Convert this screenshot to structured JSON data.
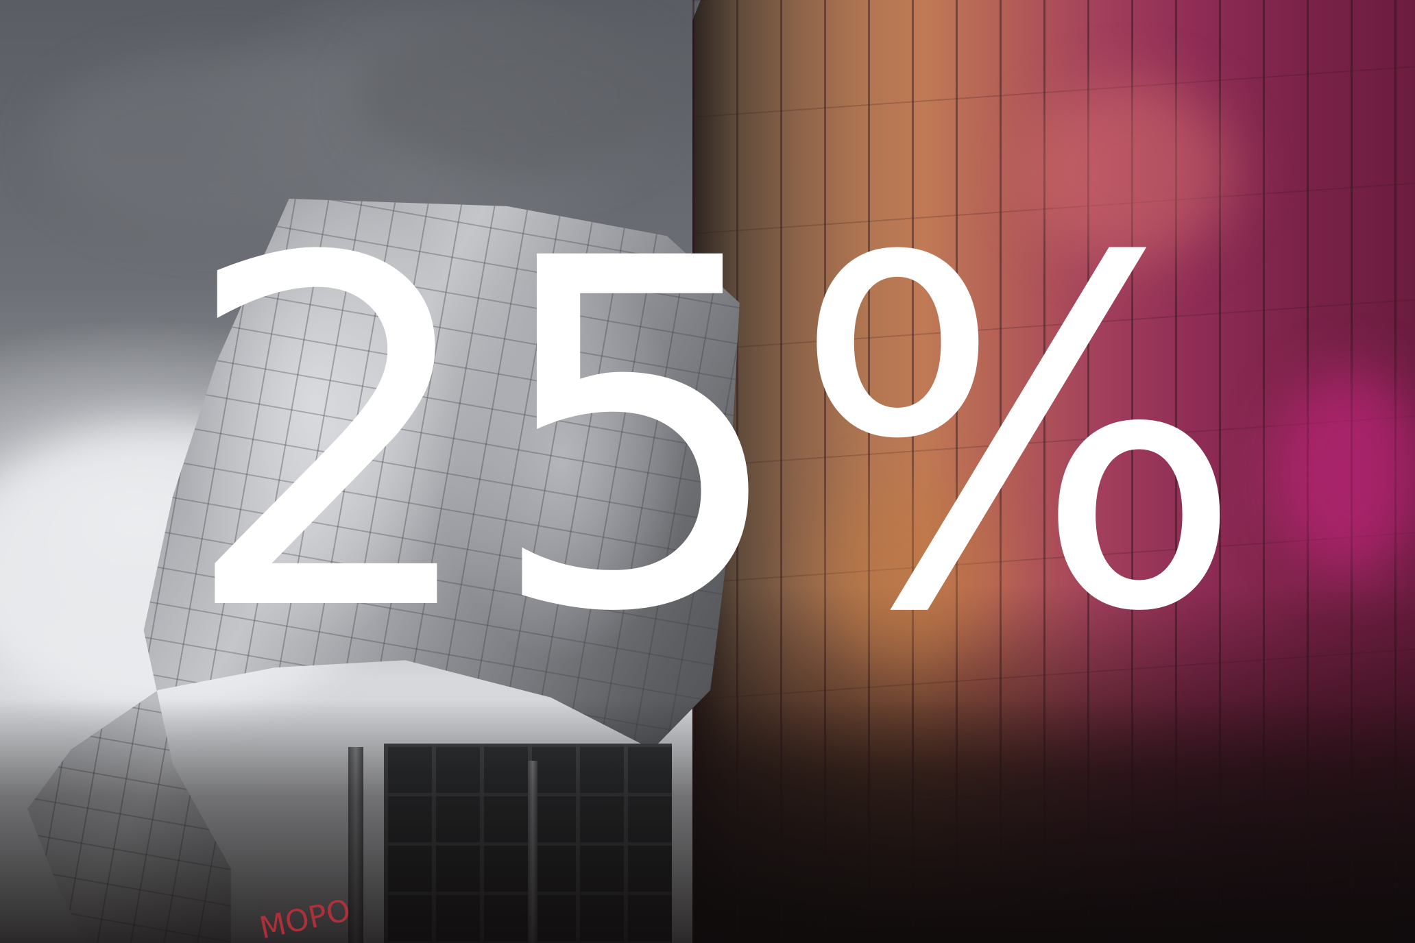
{
  "headline": {
    "text": "25%",
    "color": "#ffffff"
  },
  "graffiti": {
    "text": "MOPO",
    "color": "#c0303a"
  },
  "palette": {
    "sky": "#6c6f75",
    "steel": "#c4c6ca",
    "tower_warm": "#c07a55",
    "tower_magenta": "#8e2c55"
  }
}
